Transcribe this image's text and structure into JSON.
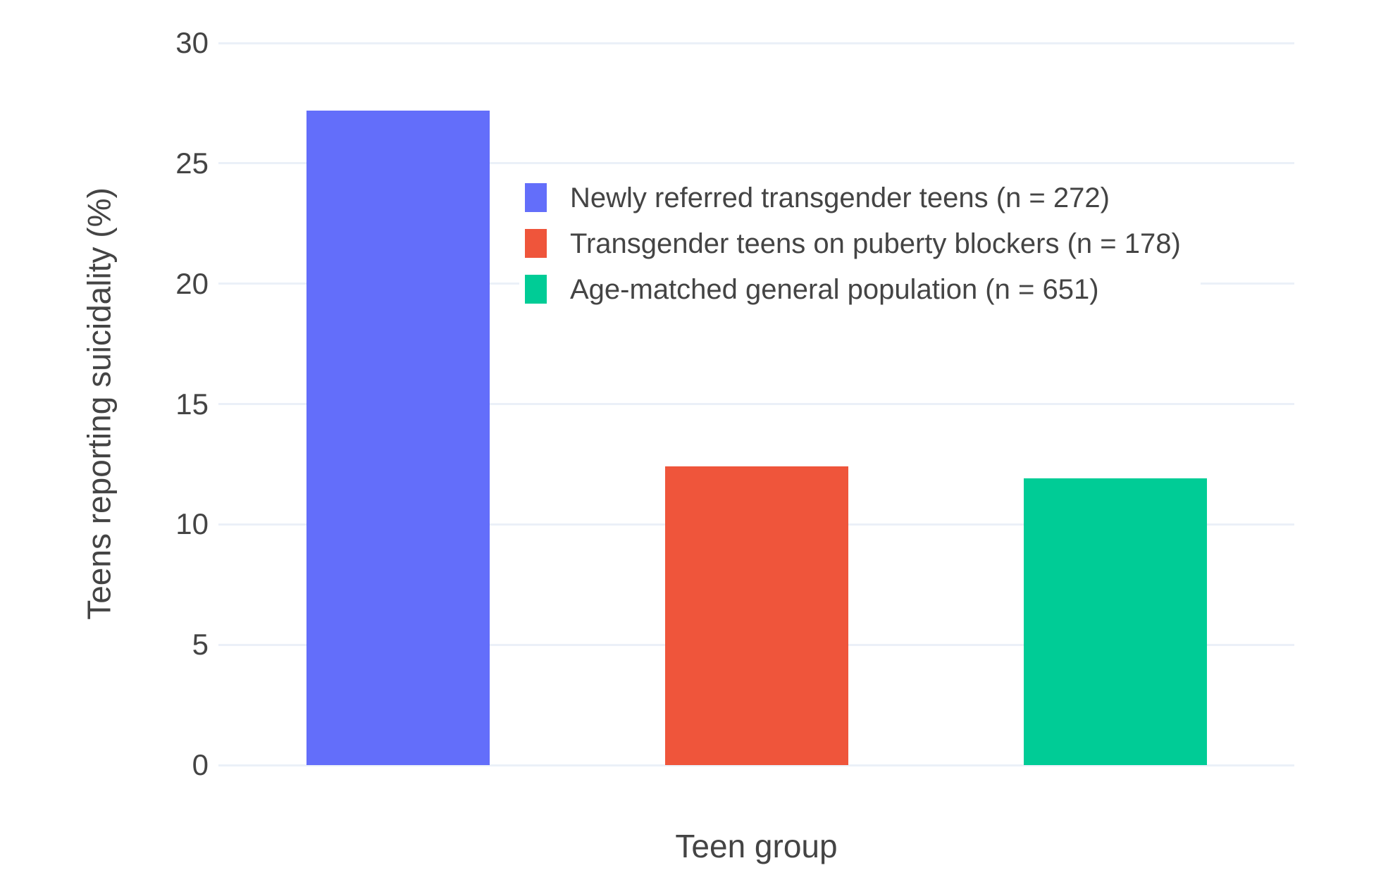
{
  "chart_data": {
    "type": "bar",
    "title": "",
    "xlabel": "Teen group",
    "ylabel": "Teens reporting suicidality (%)",
    "categories": [
      "Newly referred transgender teens (n = 272)",
      "Transgender teens on puberty blockers (n = 178)",
      "Age-matched general population (n = 651)"
    ],
    "values": [
      27.2,
      12.4,
      11.9
    ],
    "colors": [
      "#636EFA",
      "#EF553B",
      "#00CC96"
    ],
    "ylim": [
      0,
      30
    ],
    "yticks": [
      0,
      5,
      10,
      15,
      20,
      25,
      30
    ],
    "grid": true,
    "legend_position": "inside-top-center",
    "legend": [
      {
        "label": "Newly referred transgender teens (n = 272)",
        "color": "#636EFA"
      },
      {
        "label": "Transgender teens on puberty blockers (n = 178)",
        "color": "#EF553B"
      },
      {
        "label": "Age-matched general population (n = 651)",
        "color": "#00CC96"
      }
    ]
  },
  "style": {
    "background": "#FFFFFF",
    "grid_color": "#EBF0F8",
    "axis_line_color": "#EBF0F8",
    "text_color": "#444444",
    "legend_background": "#FFFFFF"
  }
}
